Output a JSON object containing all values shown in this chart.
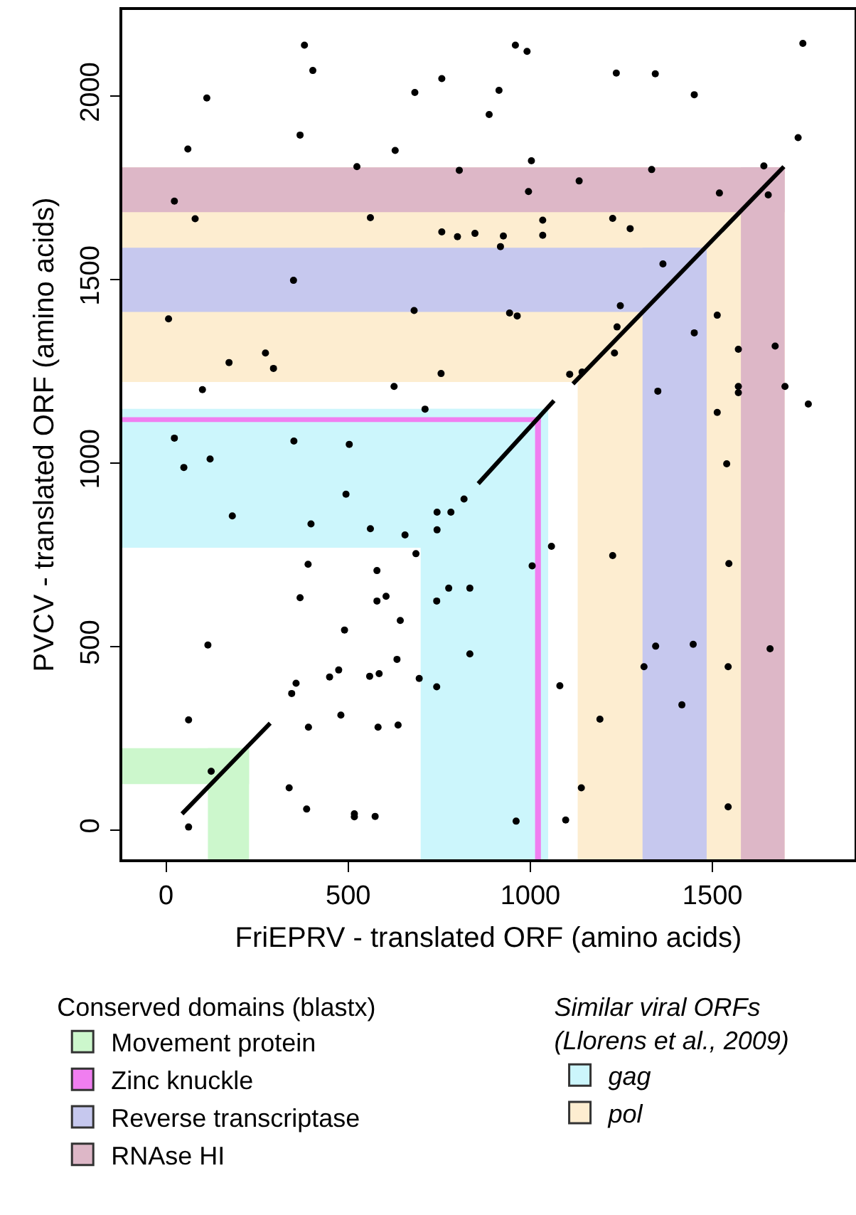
{
  "chart_data": {
    "type": "scatter",
    "xlabel": "FriEPRV - translated ORF (amino acids)",
    "ylabel": "PVCV - translated ORF (amino acids)",
    "legend_title": "Conserved domains (blastx)",
    "annotations": [
      "Similar viral ORFs\n(Llorens et al., 2009)"
    ],
    "xlim": [
      -120,
      1890
    ],
    "ylim": [
      -80,
      2235
    ],
    "xticks": [
      0,
      500,
      1000,
      1500
    ],
    "yticks": [
      0,
      500,
      1000,
      1500,
      2000
    ],
    "grid": false,
    "legend": "bottom",
    "marker": "circle",
    "bands": [
      {
        "axis": "x",
        "from": 699,
        "to": 1049,
        "label": "gag",
        "color": "#ccf6fc"
      },
      {
        "axis": "y",
        "from": 769,
        "to": 1148,
        "color": "#ccf6fc"
      },
      {
        "axis": "x",
        "from": 1130,
        "to": 1698,
        "label": "pol",
        "color": "#fdedd0"
      },
      {
        "axis": "y",
        "from": 1221,
        "to": 1806,
        "color": "#fdedd0"
      },
      {
        "axis": "x",
        "from": 115,
        "to": 228,
        "label": "Movement protein",
        "color": "#ccf7cc"
      },
      {
        "axis": "y",
        "from": 125,
        "to": 223,
        "color": "#ccf7cc"
      },
      {
        "axis": "x",
        "from": 1013,
        "to": 1029,
        "label": "Zinc knuckle",
        "color": "#f07ef0"
      },
      {
        "axis": "y",
        "from": 1112,
        "to": 1125,
        "color": "#f07ef0"
      },
      {
        "axis": "x",
        "from": 1308,
        "to": 1484,
        "label": "Reverse transcriptase",
        "color": "#c6c8ee"
      },
      {
        "axis": "y",
        "from": 1412,
        "to": 1587,
        "color": "#c6c8ee"
      },
      {
        "axis": "x",
        "from": 1578,
        "to": 1698,
        "label": "RNAse HI",
        "color": "#ddb7c7"
      },
      {
        "axis": "y",
        "from": 1684,
        "to": 1806,
        "color": "#ddb7c7"
      }
    ],
    "series": [
      {
        "type": "line",
        "marker": "none",
        "color": "#000000",
        "x": [
          44,
          234,
          286,
          570,
          857,
          1065,
          1085,
          1117,
          1696
        ],
        "values": [
          44,
          238,
          291,
          null,
          944,
          1170,
          null,
          1216,
          1808
        ]
      },
      {
        "color": "#000000",
        "x": [
          380,
          403,
          112,
          60,
          368,
          683,
          757,
          887,
          629,
          524,
          805,
          23,
          80,
          561,
          757,
          800,
          848,
          350,
          681,
          7,
          173,
          273,
          295,
          755,
          100,
          626,
          711,
          959,
          991,
          1236,
          1343,
          1748,
          914,
          1450,
          1735,
          1003,
          1333,
          1641,
          1134,
          995,
          1519,
          1653,
          1034,
          1034,
          1226,
          1274,
          926,
          918,
          1364,
          943,
          964,
          1231,
          1238,
          1247,
          1108,
          1142,
          1513,
          1450,
          1571,
          1672,
          1571,
          1571,
          1699,
          1763,
          1350,
          1513,
          1539,
          1058,
          1005,
          1226,
          1545,
          1344,
          1447,
          1312,
          1543,
          1658,
          1081,
          1416,
          1191,
          1140,
          1097,
          961,
          1543,
          23,
          49,
          121,
          351,
          503,
          494,
          182,
          398,
          561,
          656,
          686,
          744,
          744,
          782,
          818,
          390,
          579,
          368,
          579,
          604,
          643,
          490,
          743,
          776,
          834,
          834,
          115,
          357,
          345,
          449,
          474,
          559,
          585,
          634,
          695,
          743,
          62,
          391,
          480,
          582,
          637,
          124,
          338,
          386,
          517,
          517,
          574,
          62
        ],
        "values": [
          2139,
          2070,
          1995,
          1856,
          1894,
          2010,
          2048,
          1950,
          1852,
          1808,
          1798,
          1714,
          1666,
          1669,
          1630,
          1617,
          1626,
          1498,
          1416,
          1393,
          1274,
          1300,
          1258,
          1244,
          1200,
          1209,
          1147,
          2139,
          2122,
          2063,
          2061,
          2144,
          2016,
          2004,
          1887,
          1824,
          1800,
          1810,
          1769,
          1740,
          1736,
          1731,
          1662,
          1621,
          1667,
          1639,
          1619,
          1590,
          1543,
          1409,
          1401,
          1300,
          1371,
          1429,
          1242,
          1248,
          1403,
          1355,
          1310,
          1319,
          1209,
          1192,
          1209,
          1161,
          1196,
          1138,
          998,
          773,
          720,
          748,
          726,
          501,
          506,
          445,
          445,
          494,
          393,
          341,
          302,
          115,
          27,
          24,
          63,
          1068,
          988,
          1011,
          1060,
          1051,
          915,
          856,
          834,
          821,
          804,
          753,
          866,
          818,
          866,
          902,
          724,
          707,
          633,
          624,
          637,
          571,
          545,
          624,
          659,
          659,
          480,
          504,
          400,
          372,
          417,
          436,
          419,
          426,
          465,
          413,
          390,
          300,
          280,
          313,
          280,
          286,
          160,
          115,
          57,
          44,
          36,
          37,
          8
        ]
      }
    ]
  }
}
